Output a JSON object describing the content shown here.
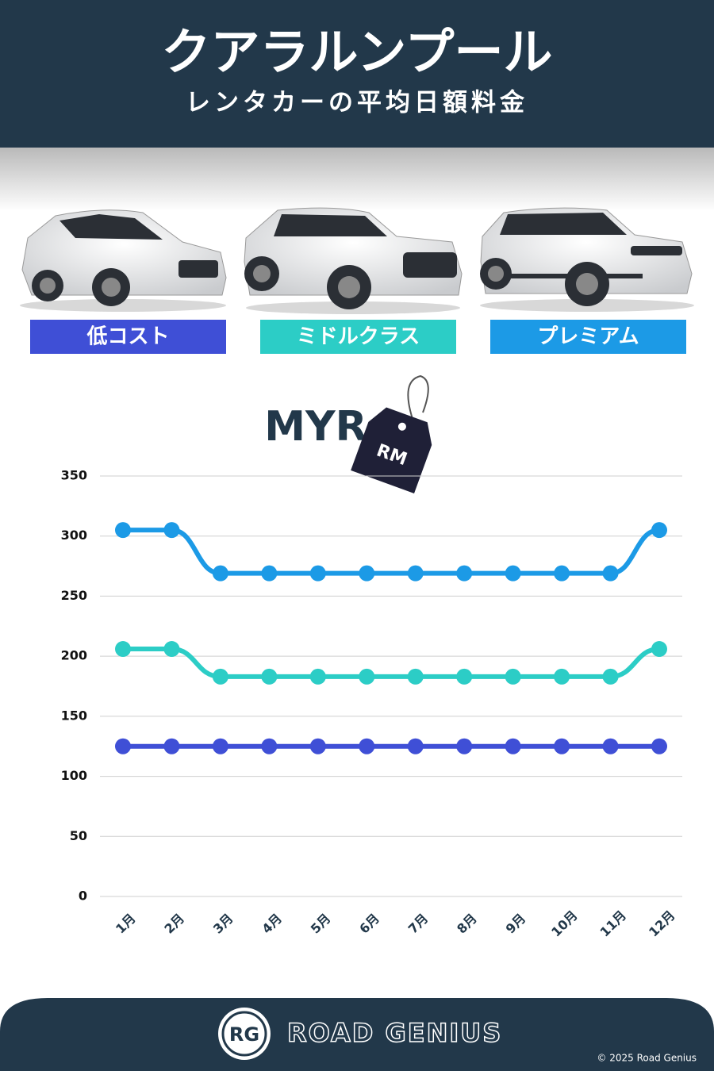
{
  "header": {
    "title": "クアラルンプール",
    "subtitle": "レンタカーの平均日額料金"
  },
  "badge": {
    "currency": "MYR",
    "tag": "RM"
  },
  "chart_data": {
    "type": "line",
    "categories": [
      "1月",
      "2月",
      "3月",
      "4月",
      "5月",
      "6月",
      "7月",
      "8月",
      "9月",
      "10月",
      "11月",
      "12月"
    ],
    "series": [
      {
        "name": "低コスト",
        "color": "#3f4fd6",
        "values": [
          125,
          125,
          125,
          125,
          125,
          125,
          125,
          125,
          125,
          125,
          125,
          125
        ]
      },
      {
        "name": "ミドルクラス",
        "color": "#2ccdc6",
        "values": [
          206,
          206,
          183,
          183,
          183,
          183,
          183,
          183,
          183,
          183,
          183,
          206
        ]
      },
      {
        "name": "プレミアム",
        "color": "#1c9ae6",
        "values": [
          305,
          305,
          269,
          269,
          269,
          269,
          269,
          269,
          269,
          269,
          269,
          305
        ]
      }
    ],
    "ylim": [
      0,
      350
    ],
    "yticks": [
      0,
      50,
      100,
      150,
      200,
      250,
      300,
      350
    ],
    "grid": true
  },
  "footer": {
    "logo": "RG",
    "brand": "ROAD GENIUS",
    "copyright": "© 2025 Road Genius"
  }
}
